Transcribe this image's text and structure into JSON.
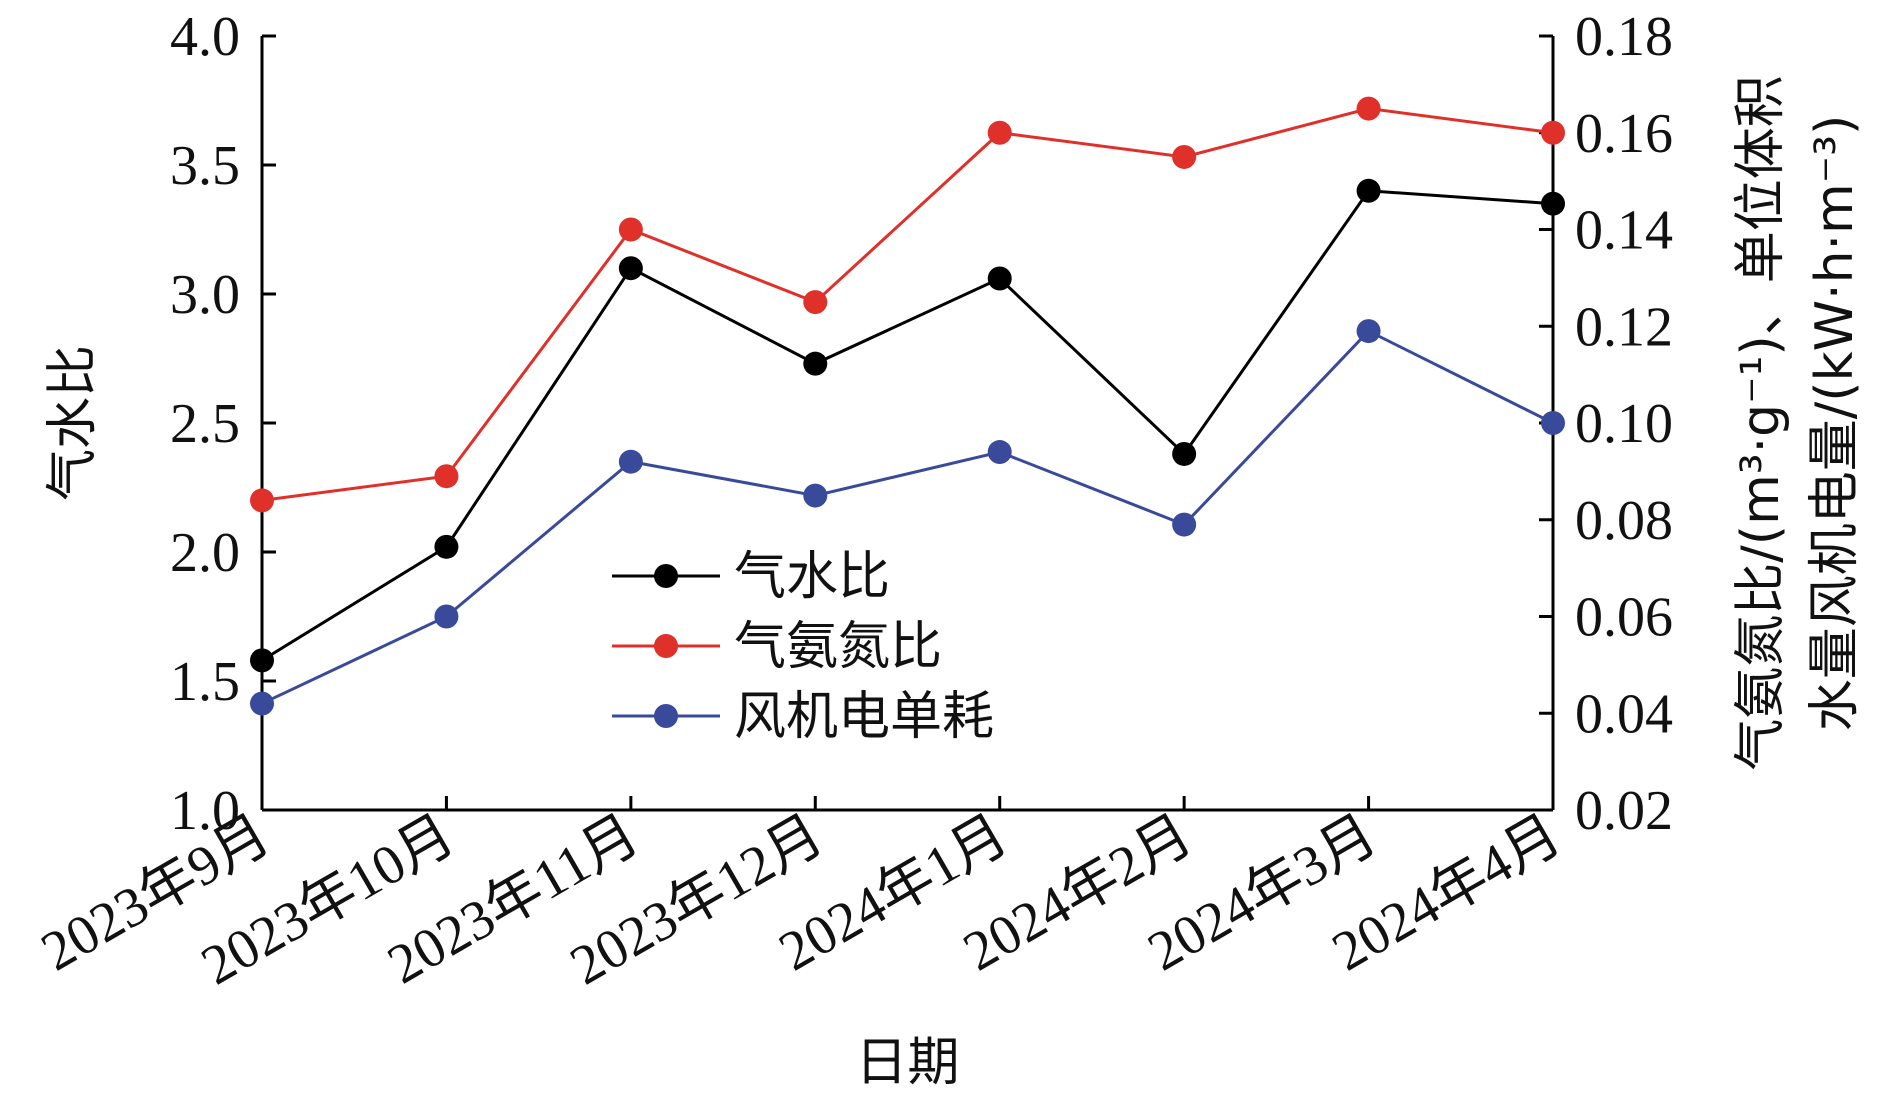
{
  "chart_data": {
    "type": "line",
    "categories": [
      "2023年9月",
      "2023年10月",
      "2023年11月",
      "2023年12月",
      "2024年1月",
      "2024年2月",
      "2024年3月",
      "2024年4月"
    ],
    "xlabel": "日期",
    "ylabel_left": "气水比",
    "ylabel_right_line1": "气氨氮比/(m³·g⁻¹)、单位体积",
    "ylabel_right_line2": "水量风机电量/(kW·h·m⁻³)",
    "ylim_left": [
      1.0,
      4.0
    ],
    "ylim_right": [
      0.02,
      0.18
    ],
    "yticks_left": [
      "1.0",
      "1.5",
      "2.0",
      "2.5",
      "3.0",
      "3.5",
      "4.0"
    ],
    "yticks_right": [
      "0.02",
      "0.04",
      "0.06",
      "0.08",
      "0.10",
      "0.12",
      "0.14",
      "0.16",
      "0.18"
    ],
    "grid": false,
    "legend_position": "center",
    "series": [
      {
        "name": "气水比",
        "axis": "left",
        "color": "#000000",
        "values": [
          1.58,
          2.02,
          3.1,
          2.73,
          3.06,
          2.38,
          3.4,
          3.35
        ]
      },
      {
        "name": "气氨氮比",
        "axis": "right",
        "color": "#e0302a",
        "values": [
          0.084,
          0.089,
          0.14,
          0.125,
          0.16,
          0.155,
          0.165,
          0.16
        ]
      },
      {
        "name": "风机电单耗",
        "axis": "right",
        "color": "#3a4a9a",
        "values": [
          0.042,
          0.06,
          0.092,
          0.085,
          0.094,
          0.079,
          0.119,
          0.1
        ]
      }
    ]
  }
}
